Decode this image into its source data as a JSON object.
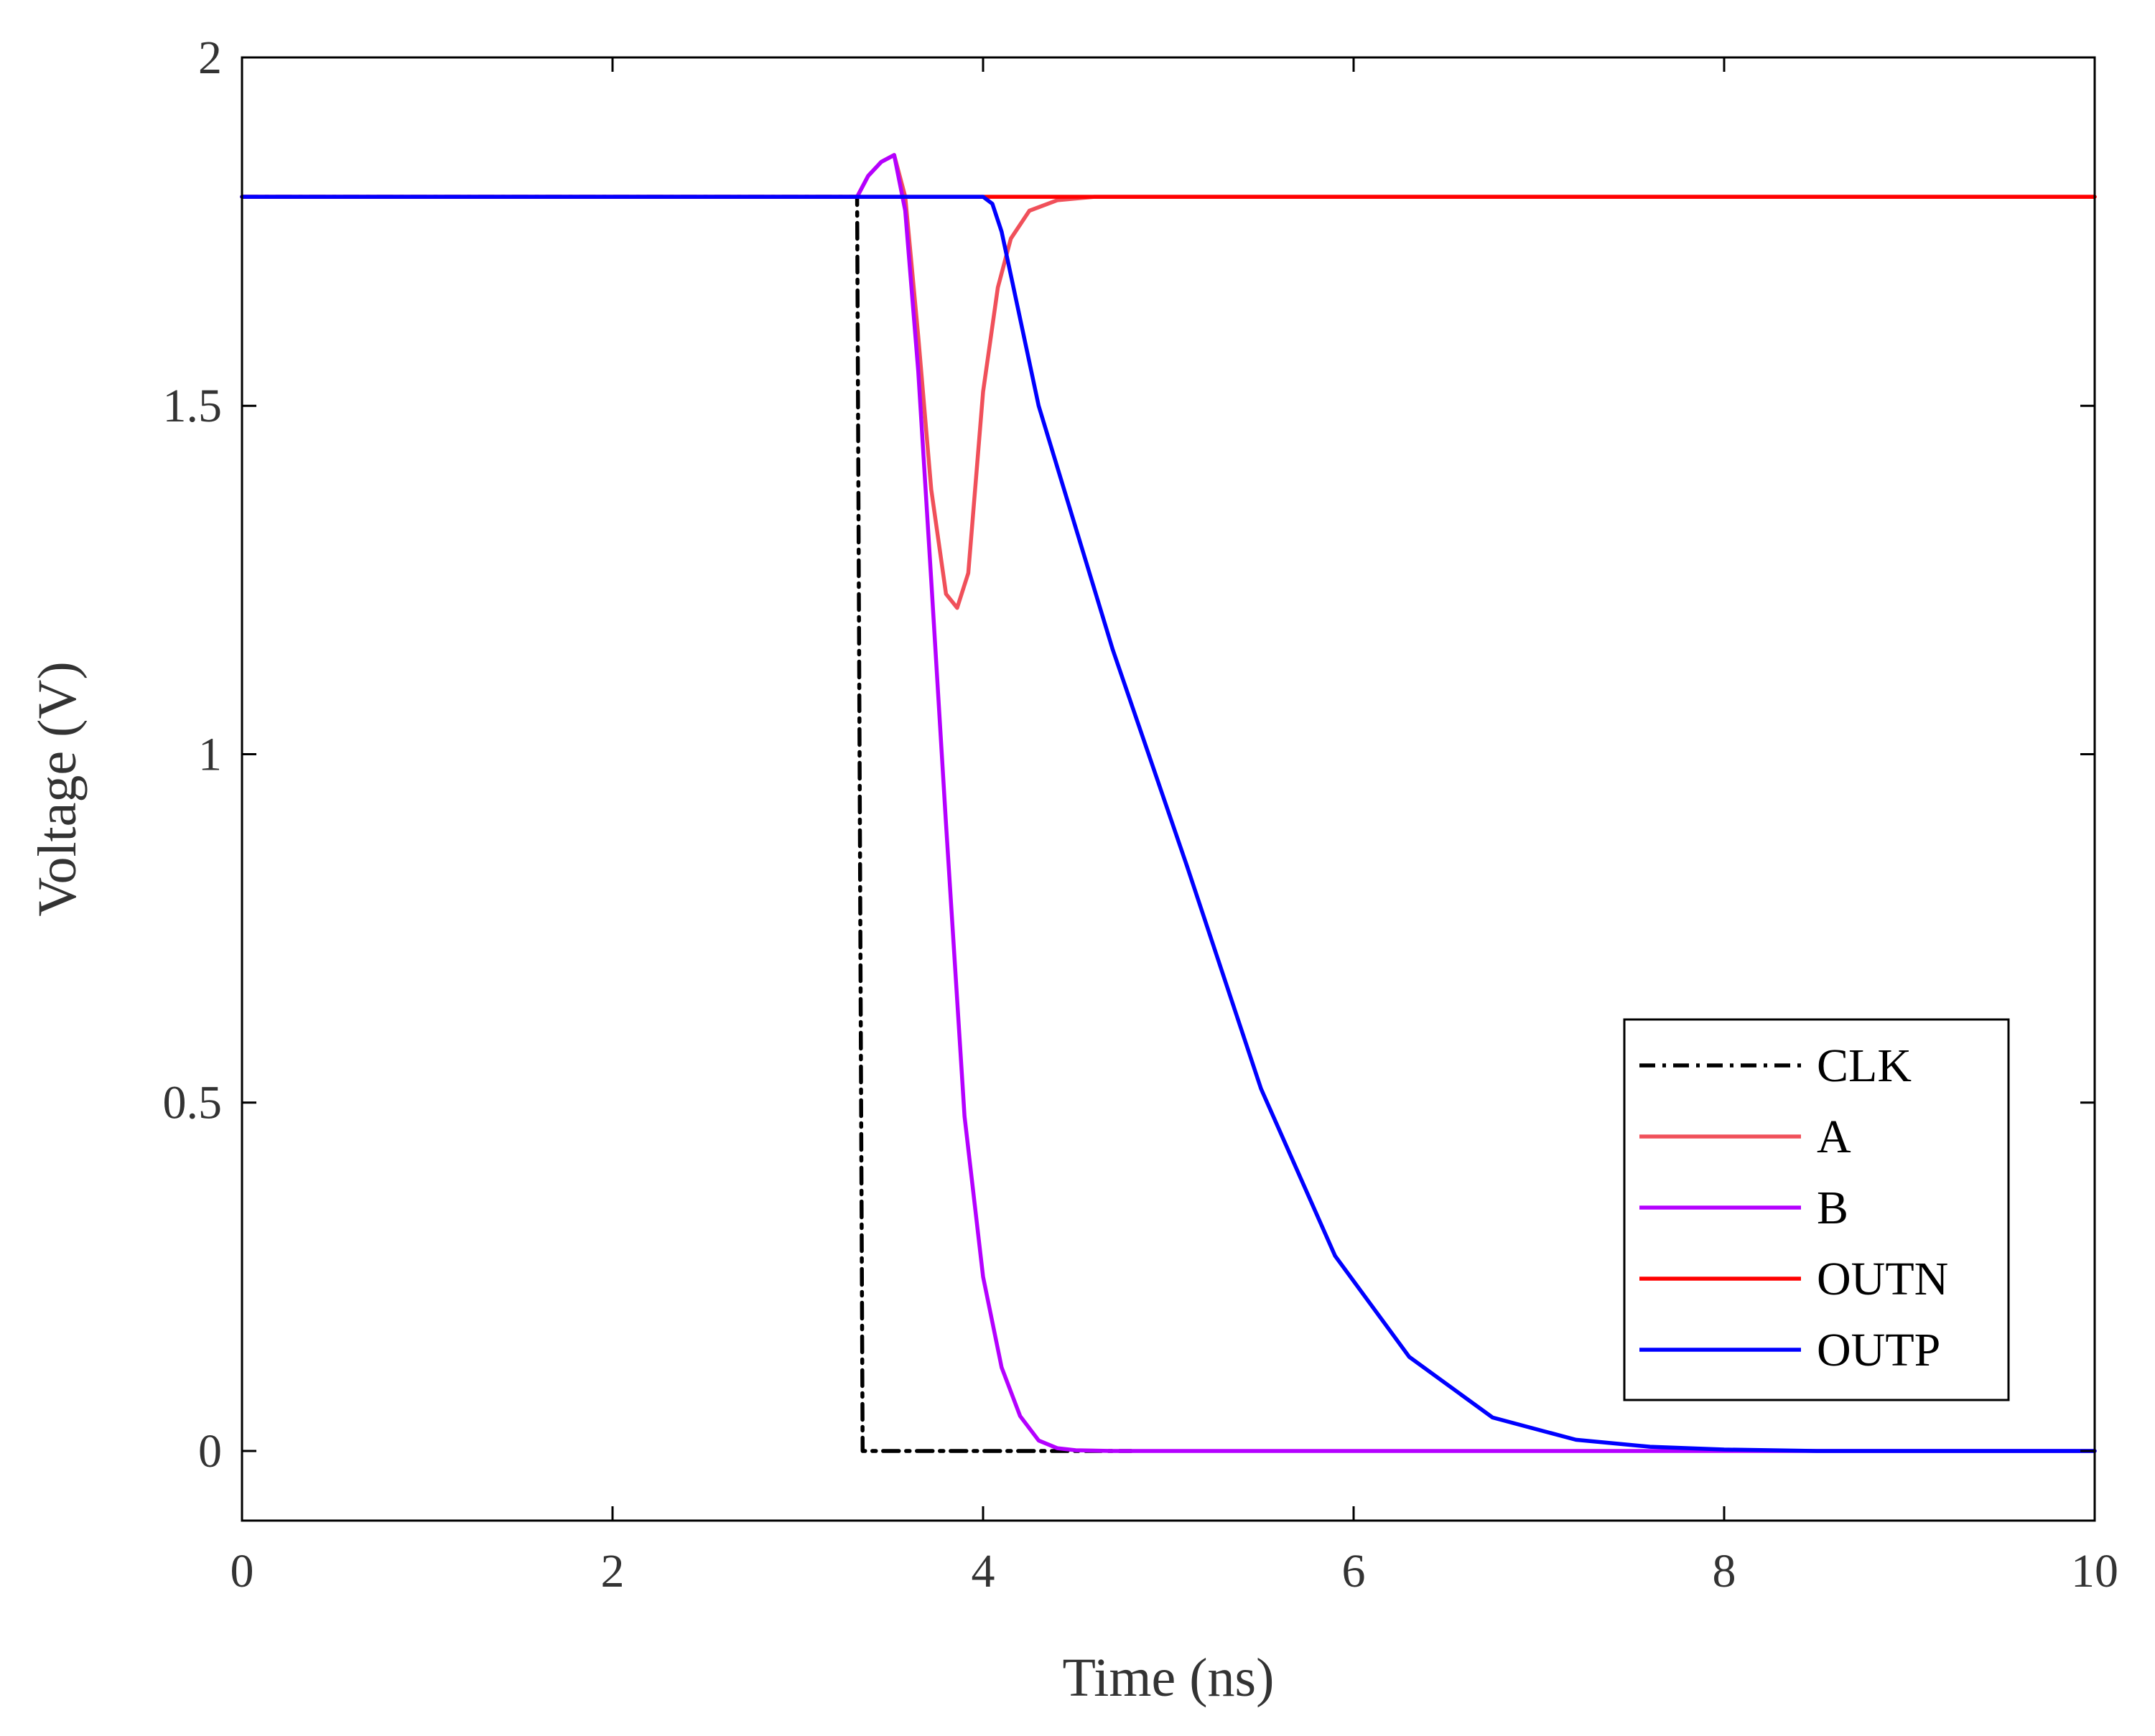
{
  "chart_data": {
    "type": "line",
    "title": "",
    "xlabel": "Time (ns)",
    "ylabel": "Voltage (V)",
    "xlim": [
      0,
      10
    ],
    "ylim": [
      -0.1,
      2
    ],
    "xticks": [
      0,
      2,
      4,
      6,
      8,
      10
    ],
    "xtick_labels": [
      "0",
      "2",
      "4",
      "6",
      "8",
      "10"
    ],
    "yticks": [
      0,
      0.5,
      1,
      1.5,
      2
    ],
    "ytick_labels": [
      "0",
      "0.5",
      "1",
      "1.5",
      "2"
    ],
    "grid": false,
    "legend_position": "bottom-right",
    "series": [
      {
        "name": "CLK",
        "color": "#000000",
        "dash": "dashdot",
        "x": [
          0,
          3.32,
          3.35,
          4.8
        ],
        "y": [
          1.8,
          1.8,
          0,
          0
        ]
      },
      {
        "name": "A",
        "color": "#f0505a",
        "dash": "solid",
        "x": [
          0,
          3.32,
          3.38,
          3.45,
          3.52,
          3.58,
          3.65,
          3.72,
          3.8,
          3.86,
          3.92,
          4.0,
          4.08,
          4.15,
          4.25,
          4.4,
          4.6,
          10
        ],
        "y": [
          1.8,
          1.8,
          1.83,
          1.85,
          1.86,
          1.8,
          1.6,
          1.38,
          1.23,
          1.21,
          1.26,
          1.52,
          1.67,
          1.74,
          1.78,
          1.795,
          1.8,
          1.8
        ]
      },
      {
        "name": "B",
        "color": "#b400ff",
        "dash": "solid",
        "x": [
          0,
          3.32,
          3.38,
          3.45,
          3.52,
          3.58,
          3.65,
          3.72,
          3.8,
          3.9,
          4.0,
          4.1,
          4.2,
          4.3,
          4.4,
          4.5,
          4.7,
          10
        ],
        "y": [
          1.8,
          1.8,
          1.83,
          1.85,
          1.86,
          1.78,
          1.55,
          1.25,
          0.9,
          0.48,
          0.25,
          0.12,
          0.05,
          0.015,
          0.004,
          0.001,
          0,
          0
        ]
      },
      {
        "name": "OUTN",
        "color": "#ff0000",
        "dash": "solid",
        "x": [
          0,
          10
        ],
        "y": [
          1.8,
          1.8
        ]
      },
      {
        "name": "OUTP",
        "color": "#0000ff",
        "dash": "solid",
        "x": [
          0,
          3.5,
          3.9,
          4.0,
          4.05,
          4.1,
          4.3,
          4.7,
          5.1,
          5.5,
          5.9,
          6.3,
          6.75,
          7.2,
          7.6,
          8.0,
          8.5,
          10
        ],
        "y": [
          1.8,
          1.8,
          1.8,
          1.8,
          1.79,
          1.75,
          1.5,
          1.15,
          0.84,
          0.52,
          0.28,
          0.135,
          0.048,
          0.016,
          0.006,
          0.002,
          0,
          0
        ]
      }
    ]
  }
}
